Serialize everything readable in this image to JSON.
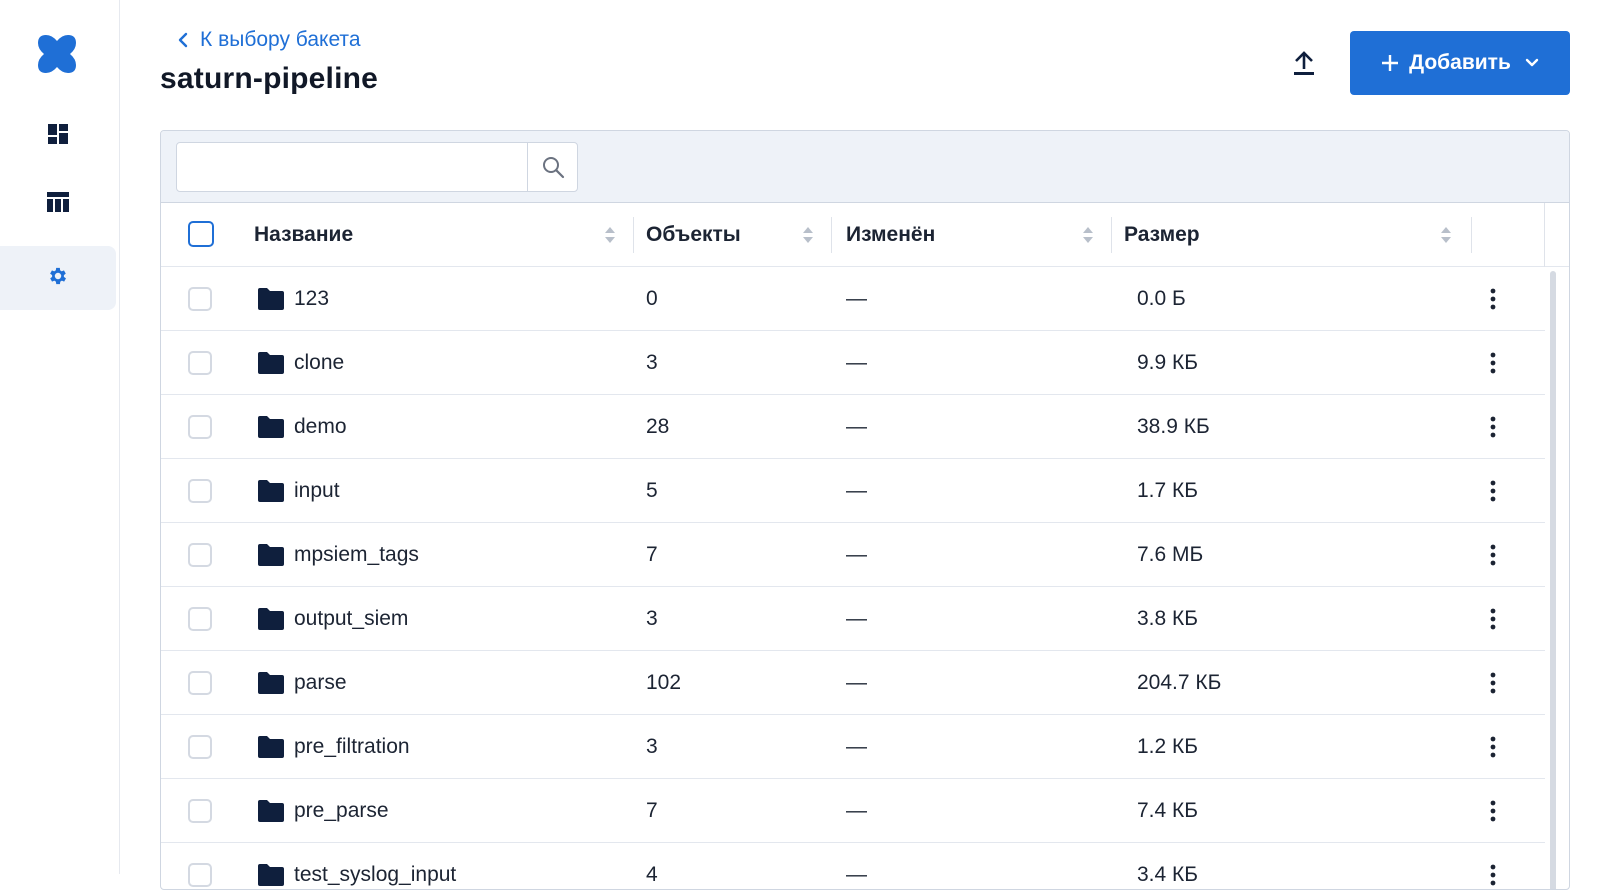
{
  "header": {
    "back_label": "К выбору бакета",
    "title": "saturn-pipeline",
    "add_label": "Добавить"
  },
  "search": {
    "placeholder": ""
  },
  "colors": {
    "accent": "#1f6fd6",
    "folder": "#0f1f3d",
    "toolbar_bg": "#eef2f8"
  },
  "icons": {
    "logo": "logo-icon",
    "nav": [
      "dashboard-icon",
      "table-icon",
      "gear-icon"
    ],
    "upload": "upload-icon",
    "search": "search-icon",
    "folder": "folder-icon",
    "row_menu": "kebab-icon"
  },
  "table": {
    "columns": {
      "name": "Название",
      "objects": "Объекты",
      "modified": "Изменён",
      "size": "Размер"
    },
    "rows": [
      {
        "name": "123",
        "objects": "0",
        "modified": "—",
        "size": "0.0 Б"
      },
      {
        "name": "clone",
        "objects": "3",
        "modified": "—",
        "size": "9.9 КБ"
      },
      {
        "name": "demo",
        "objects": "28",
        "modified": "—",
        "size": "38.9 КБ"
      },
      {
        "name": "input",
        "objects": "5",
        "modified": "—",
        "size": "1.7 КБ"
      },
      {
        "name": "mpsiem_tags",
        "objects": "7",
        "modified": "—",
        "size": "7.6 МБ"
      },
      {
        "name": "output_siem",
        "objects": "3",
        "modified": "—",
        "size": "3.8 КБ"
      },
      {
        "name": "parse",
        "objects": "102",
        "modified": "—",
        "size": "204.7 КБ"
      },
      {
        "name": "pre_filtration",
        "objects": "3",
        "modified": "—",
        "size": "1.2 КБ"
      },
      {
        "name": "pre_parse",
        "objects": "7",
        "modified": "—",
        "size": "7.4 КБ"
      },
      {
        "name": "test_syslog_input",
        "objects": "4",
        "modified": "—",
        "size": "3.4 КБ"
      }
    ]
  }
}
